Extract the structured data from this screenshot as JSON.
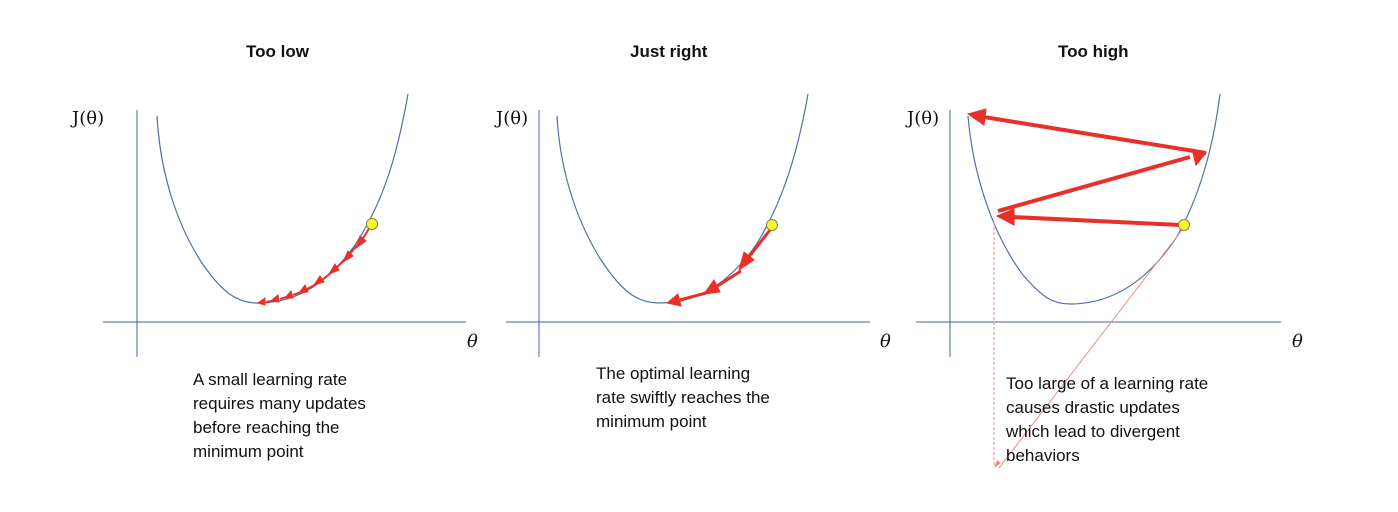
{
  "panels": [
    {
      "id": "too-low",
      "title": "Too low",
      "y_label": "J(θ)",
      "x_label": "θ",
      "caption": "A small learning rate\nrequires many updates\nbefore reaching the\nminimum point"
    },
    {
      "id": "just-right",
      "title": "Just right",
      "y_label": "J(θ)",
      "x_label": "θ",
      "caption": "The optimal learning\nrate swiftly reaches the\nminimum point"
    },
    {
      "id": "too-high",
      "title": "Too high",
      "y_label": "J(θ)",
      "x_label": "θ",
      "caption": "Too large of a learning rate\ncauses drastic updates\nwhich lead to divergent\nbehaviors"
    }
  ],
  "colors": {
    "curve": "#5470a8",
    "axis": "#4a5fa8",
    "arrow": "#e8302a",
    "start_point": "#f5f53a",
    "callout": "#f08a85"
  }
}
